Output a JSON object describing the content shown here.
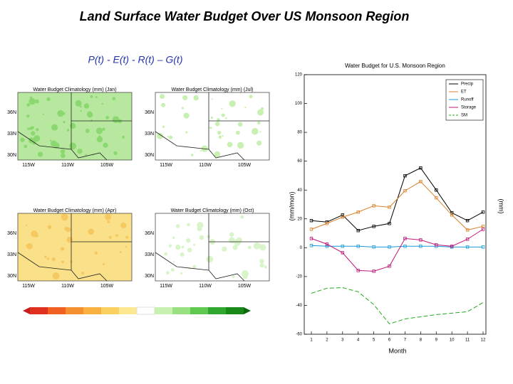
{
  "title": "Land Surface Water Budget Over US Monsoon Region",
  "formula": "P(t) - E(t) - R(t) – G(t)",
  "maps": [
    {
      "title": "Water Budget Climatology (mm) (Jan)"
    },
    {
      "title": "Water Budget Climatology (mm) (Jul)"
    },
    {
      "title": "Water Budget Climatology (mm) (Apr)"
    },
    {
      "title": "Water Budget Climatology (mm) (Oct)"
    }
  ],
  "map_lat_labels": [
    "36N",
    "33N",
    "30N"
  ],
  "map_lon_labels": [
    "115W",
    "110W",
    "105W"
  ],
  "chart_data": {
    "type": "line",
    "title": "Water Budget for U.S. Monsoon Region",
    "xlabel": "Month",
    "ylabel": "(mm/mon)",
    "y2label": "(mm)",
    "x": [
      1,
      2,
      3,
      4,
      5,
      6,
      7,
      8,
      9,
      10,
      11,
      12
    ],
    "xlim": [
      1,
      12
    ],
    "xticks": [
      1,
      2,
      3,
      4,
      5,
      6,
      7,
      8,
      9,
      10,
      11,
      12
    ],
    "ylim": [
      -60,
      120
    ],
    "yticks": [
      -60,
      -40,
      -20,
      0,
      20,
      40,
      60,
      80,
      100,
      120
    ],
    "legend": "upper right",
    "series": [
      {
        "name": "Precip",
        "color": "#000000",
        "marker": true,
        "dashed": false,
        "values": [
          18.8,
          17.8,
          22.7,
          11.9,
          14.8,
          16.8,
          49.9,
          55.3,
          40,
          24.2,
          18.8,
          24.7
        ]
      },
      {
        "name": "ET",
        "color": "#d9822b",
        "marker": true,
        "dashed": false,
        "values": [
          12.8,
          16.8,
          21.2,
          24.7,
          29.1,
          28.1,
          39.5,
          45.9,
          34.6,
          22.7,
          12.3,
          14.8
        ]
      },
      {
        "name": "Runoff",
        "color": "#1a9ad6",
        "marker": true,
        "dashed": false,
        "values": [
          1.5,
          1,
          1,
          1,
          0.5,
          0.5,
          1,
          1,
          1,
          0.5,
          0.5,
          0.5
        ]
      },
      {
        "name": "Storage",
        "color": "#c0187a",
        "marker": true,
        "dashed": false,
        "values": [
          6.4,
          2.5,
          -3.5,
          -15.8,
          -16.3,
          -12.8,
          6.4,
          5.4,
          2,
          1,
          5.9,
          12.8
        ]
      },
      {
        "name": "SM",
        "color": "#22aa22",
        "marker": false,
        "dashed": true,
        "values": [
          -31.6,
          -28.1,
          -27.7,
          -30.6,
          -39.5,
          -52.8,
          -49.4,
          -47.9,
          -46.4,
          -45.4,
          -44.4,
          -38
        ]
      }
    ]
  }
}
